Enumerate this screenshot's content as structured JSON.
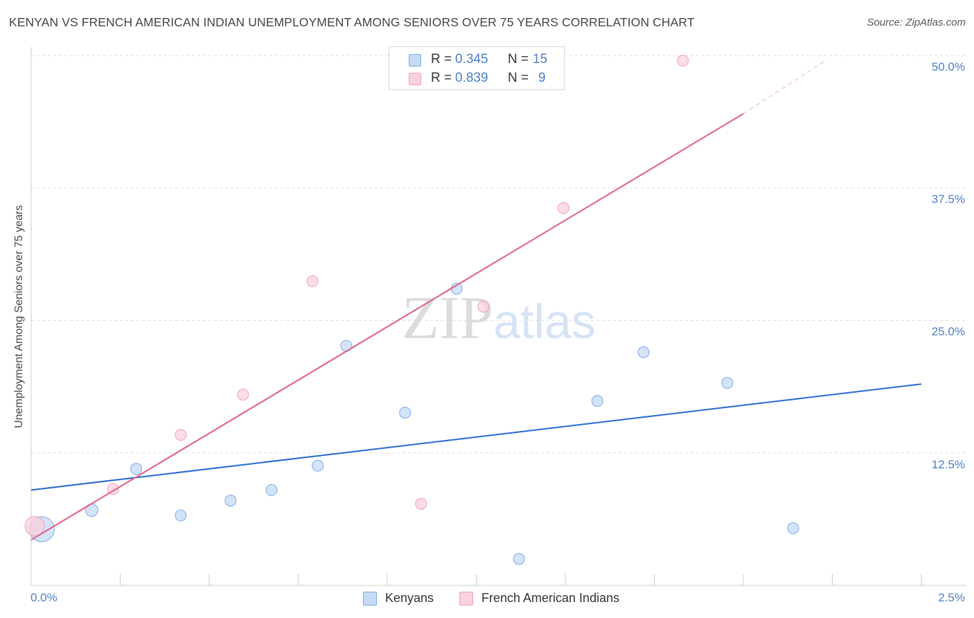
{
  "chart_data": {
    "type": "scatter",
    "title": "KENYAN VS FRENCH AMERICAN INDIAN UNEMPLOYMENT AMONG SENIORS OVER 75 YEARS CORRELATION CHART",
    "source": "Source: ZipAtlas.com",
    "xlabel": "",
    "ylabel": "Unemployment Among Seniors over 75 years",
    "xlim": [
      0,
      2.5
    ],
    "ylim": [
      0,
      50
    ],
    "x_tick_labels": [
      "0.0%",
      "2.5%"
    ],
    "y_ticks": [
      12.5,
      25.0,
      37.5,
      50.0
    ],
    "y_tick_labels": [
      "12.5%",
      "25.0%",
      "37.5%",
      "50.0%"
    ],
    "watermark": "ZIPatlas",
    "legend": [
      {
        "r_label": "R =",
        "r_value": "0.345",
        "n_label": "N =",
        "n_value": "15"
      },
      {
        "r_label": "R =",
        "r_value": "0.839",
        "n_label": "N =",
        "n_value": "9"
      }
    ],
    "series": [
      {
        "name": "Kenyans",
        "color": "#7aaae8",
        "fill": "#c5dbf5",
        "line_color": "#2f6fd0",
        "x": [
          0.03,
          0.17,
          0.295,
          0.42,
          0.56,
          0.675,
          0.805,
          0.885,
          1.05,
          1.195,
          1.37,
          1.59,
          1.72,
          1.955,
          2.14
        ],
        "y": [
          5.3,
          7.1,
          11.0,
          6.6,
          8.0,
          9.0,
          11.3,
          22.6,
          16.3,
          28.0,
          2.5,
          17.4,
          22.0,
          19.1,
          5.4
        ],
        "sizes": [
          18,
          9,
          8,
          8,
          8,
          8,
          8,
          8,
          8,
          8,
          8,
          8,
          8,
          8,
          8
        ],
        "trend": {
          "x": [
            0.0,
            2.5
          ],
          "y": [
            9.0,
            19.0
          ]
        }
      },
      {
        "name": "French American Indians",
        "color": "#f0a0b8",
        "fill": "#fad1de",
        "line_color": "#e0688f",
        "x": [
          0.01,
          0.23,
          0.42,
          0.595,
          0.79,
          1.095,
          1.27,
          1.495,
          1.83
        ],
        "y": [
          5.6,
          9.1,
          14.2,
          18.0,
          28.7,
          7.7,
          26.3,
          35.6,
          49.5
        ],
        "sizes": [
          14,
          8,
          8,
          8,
          8,
          8,
          8,
          8,
          8
        ],
        "trend": {
          "x": [
            0.0,
            2.0
          ],
          "y": [
            4.3,
            44.5
          ]
        },
        "trend_dashed_extension": {
          "x": [
            2.0,
            2.23
          ],
          "y": [
            44.5,
            49.5
          ]
        }
      }
    ]
  }
}
